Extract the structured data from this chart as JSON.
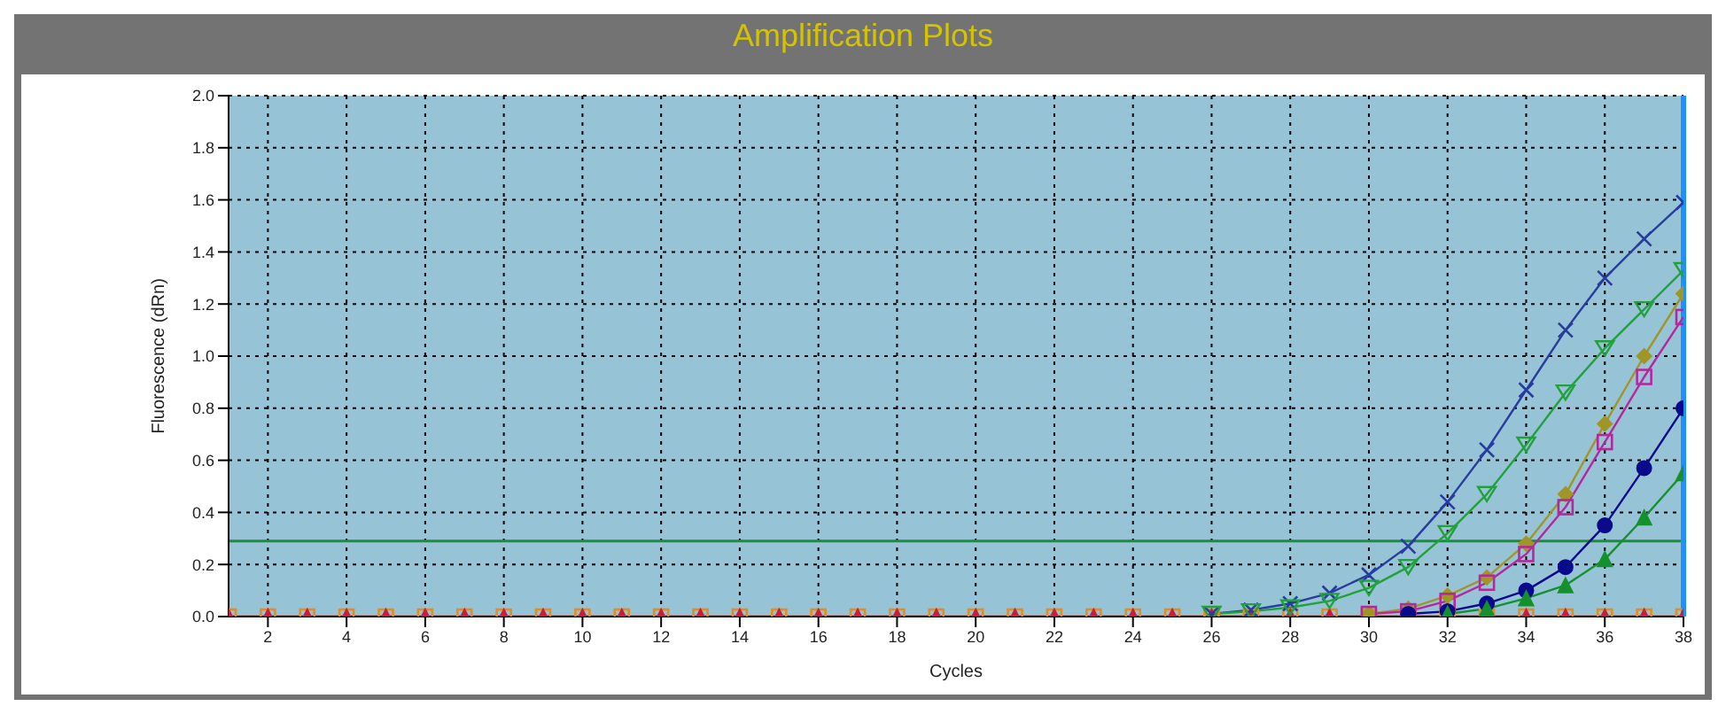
{
  "chart_data": {
    "type": "line",
    "title": "Amplification Plots",
    "xlabel": "Cycles",
    "ylabel": "Fluorescence (dRn)",
    "x": [
      1,
      2,
      3,
      4,
      5,
      6,
      7,
      8,
      9,
      10,
      11,
      12,
      13,
      14,
      15,
      16,
      17,
      18,
      19,
      20,
      21,
      22,
      23,
      24,
      25,
      26,
      27,
      28,
      29,
      30,
      31,
      32,
      33,
      34,
      35,
      36,
      37,
      38
    ],
    "series": [
      {
        "color": "#e68c1e",
        "marker": "square",
        "values": [
          0,
          0,
          0,
          0,
          0,
          0,
          0,
          0,
          0,
          0,
          0,
          0,
          0,
          0,
          0,
          0,
          0,
          0,
          0,
          0,
          0,
          0,
          0,
          0,
          0,
          0,
          0,
          0,
          0,
          0,
          0,
          0,
          0,
          0,
          0,
          0,
          0,
          0
        ]
      },
      {
        "color": "#c81e3c",
        "marker": "triangle",
        "values": [
          0,
          0,
          0,
          0,
          0,
          0,
          0,
          0,
          0,
          0,
          0,
          0,
          0,
          0,
          0,
          0,
          0,
          0,
          0,
          0,
          0,
          0,
          0,
          0,
          0,
          0,
          0,
          0,
          0,
          0,
          0,
          0,
          0,
          0,
          0,
          0,
          0,
          0
        ]
      },
      {
        "color": "#283ca0",
        "marker": "cross",
        "values": [
          null,
          null,
          null,
          null,
          null,
          null,
          null,
          null,
          null,
          null,
          null,
          null,
          null,
          null,
          null,
          null,
          null,
          null,
          null,
          null,
          null,
          null,
          null,
          null,
          null,
          0.01,
          0.025,
          0.05,
          0.09,
          0.16,
          0.27,
          0.44,
          0.64,
          0.87,
          1.1,
          1.3,
          1.45,
          1.59
        ]
      },
      {
        "color": "#22a03c",
        "marker": "triangle-down",
        "values": [
          null,
          null,
          null,
          null,
          null,
          null,
          null,
          null,
          null,
          null,
          null,
          null,
          null,
          null,
          null,
          null,
          null,
          null,
          null,
          null,
          null,
          null,
          null,
          null,
          null,
          0.01,
          0.02,
          0.035,
          0.06,
          0.11,
          0.19,
          0.32,
          0.47,
          0.66,
          0.86,
          1.03,
          1.18,
          1.33
        ]
      },
      {
        "color": "#a09628",
        "marker": "diamond",
        "values": [
          null,
          null,
          null,
          null,
          null,
          null,
          null,
          null,
          null,
          null,
          null,
          null,
          null,
          null,
          null,
          null,
          null,
          null,
          null,
          null,
          null,
          null,
          null,
          null,
          null,
          null,
          null,
          null,
          null,
          0.01,
          0.03,
          0.08,
          0.15,
          0.28,
          0.47,
          0.74,
          1.0,
          1.24
        ]
      },
      {
        "color": "#b4289c",
        "marker": "square",
        "values": [
          null,
          null,
          null,
          null,
          null,
          null,
          null,
          null,
          null,
          null,
          null,
          null,
          null,
          null,
          null,
          null,
          null,
          null,
          null,
          null,
          null,
          null,
          null,
          null,
          null,
          null,
          null,
          null,
          null,
          0.01,
          0.02,
          0.06,
          0.13,
          0.24,
          0.42,
          0.67,
          0.92,
          1.15
        ]
      },
      {
        "color": "#0a0a8c",
        "marker": "circle",
        "values": [
          null,
          null,
          null,
          null,
          null,
          null,
          null,
          null,
          null,
          null,
          null,
          null,
          null,
          null,
          null,
          null,
          null,
          null,
          null,
          null,
          null,
          null,
          null,
          null,
          null,
          null,
          null,
          null,
          null,
          null,
          0.01,
          0.02,
          0.05,
          0.1,
          0.19,
          0.35,
          0.57,
          0.8
        ]
      },
      {
        "color": "#14912d",
        "marker": "triangle",
        "values": [
          null,
          null,
          null,
          null,
          null,
          null,
          null,
          null,
          null,
          null,
          null,
          null,
          null,
          null,
          null,
          null,
          null,
          null,
          null,
          null,
          null,
          null,
          null,
          null,
          null,
          null,
          null,
          null,
          null,
          null,
          null,
          0.01,
          0.03,
          0.07,
          0.12,
          0.22,
          0.38,
          0.55
        ]
      }
    ],
    "xlim": [
      1,
      38
    ],
    "xticks": [
      2,
      4,
      6,
      8,
      10,
      12,
      14,
      16,
      18,
      20,
      22,
      24,
      26,
      28,
      30,
      32,
      34,
      36,
      38
    ],
    "ylim": [
      0,
      2
    ],
    "yticks": [
      {
        "value": 0,
        "label": "0.0"
      },
      {
        "value": 0.2,
        "label": "0.2"
      },
      {
        "value": 0.4,
        "label": "0.4"
      },
      {
        "value": 0.6,
        "label": "0.6"
      },
      {
        "value": 0.8,
        "label": "0.8"
      },
      {
        "value": 1,
        "label": "1.0"
      },
      {
        "value": 1.2,
        "label": "1.2"
      },
      {
        "value": 1.4,
        "label": "1.4"
      },
      {
        "value": 1.6,
        "label": "1.6"
      },
      {
        "value": 1.8,
        "label": "1.8"
      },
      {
        "value": 2,
        "label": "2.0"
      }
    ],
    "ref_lines": [
      {
        "axis": "y",
        "value": 0.29,
        "color": "#1e8c3c"
      },
      {
        "axis": "x",
        "value": 38,
        "color": "#1e90ff"
      }
    ],
    "grid": true,
    "line_style": "solid"
  }
}
